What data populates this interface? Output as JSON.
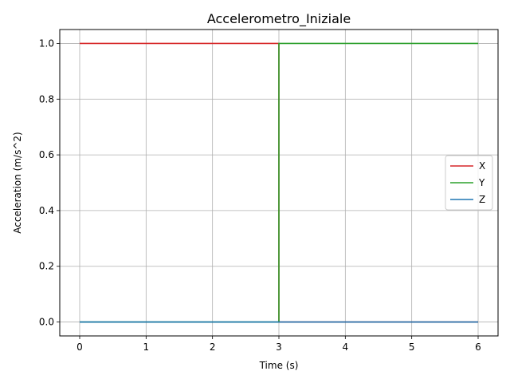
{
  "chart_data": {
    "type": "line",
    "title": "Accelerometro_Iniziale",
    "xlabel": "Time (s)",
    "ylabel": "Acceleration (m/s^2)",
    "xlim": [
      -0.3,
      6.3
    ],
    "ylim": [
      -0.05,
      1.05
    ],
    "xticks": [
      0,
      1,
      2,
      3,
      4,
      5,
      6
    ],
    "xtick_labels": [
      "0",
      "1",
      "2",
      "3",
      "4",
      "5",
      "6"
    ],
    "yticks": [
      0.0,
      0.2,
      0.4,
      0.6,
      0.8,
      1.0
    ],
    "ytick_labels": [
      "0.0",
      "0.2",
      "0.4",
      "0.6",
      "0.8",
      "1.0"
    ],
    "grid": true,
    "legend_position": "center-right",
    "series": [
      {
        "name": "X",
        "color": "#d62728",
        "x": [
          0,
          3,
          3,
          6
        ],
        "y": [
          1,
          1,
          0,
          0
        ]
      },
      {
        "name": "Y",
        "color": "#2ca02c",
        "x": [
          0,
          3,
          3,
          6
        ],
        "y": [
          0,
          0,
          1,
          1
        ]
      },
      {
        "name": "Z",
        "color": "#1f77b4",
        "x": [
          0,
          6
        ],
        "y": [
          0,
          0
        ]
      }
    ]
  }
}
